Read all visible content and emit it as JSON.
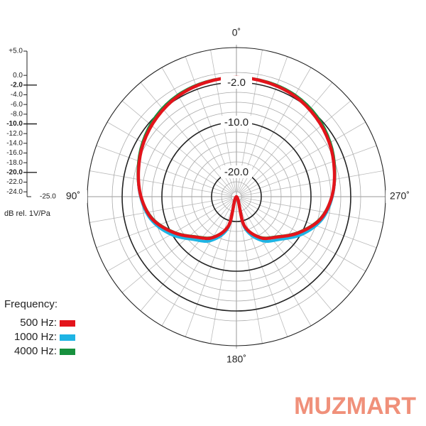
{
  "chart_data": {
    "type": "polar",
    "axis_label": "dB rel. 1V/Pa",
    "legend_title": "Frequency:",
    "watermark": "MUZMART",
    "rlim": [
      -25,
      5
    ],
    "rticks": [
      5,
      0,
      -2,
      -4,
      -6,
      -8,
      -10,
      -12,
      -14,
      -16,
      -18,
      -20,
      -22,
      -24
    ],
    "bold_rings": [
      {
        "value": -2,
        "label": "-2.0"
      },
      {
        "value": -10,
        "label": "-10.0"
      },
      {
        "value": -20,
        "label": "-20.0"
      }
    ],
    "spokes_every": 10,
    "angle_labels": [
      {
        "value": 0,
        "label": "0˚"
      },
      {
        "value": 90,
        "label": "90˚"
      },
      {
        "value": 180,
        "label": "180˚"
      },
      {
        "value": 270,
        "label": "270˚"
      }
    ],
    "yticks": [
      {
        "value": 5,
        "label": "+5.0"
      },
      {
        "value": 0,
        "label": "0.0"
      },
      {
        "value": -2,
        "label": "-2.0"
      },
      {
        "value": -4,
        "label": "-4.0"
      },
      {
        "value": -6,
        "label": "-6.0"
      },
      {
        "value": -8,
        "label": "-8.0"
      },
      {
        "value": -10,
        "label": "-10.0"
      },
      {
        "value": -12,
        "label": "-12.0"
      },
      {
        "value": -14,
        "label": "-14.0"
      },
      {
        "value": -16,
        "label": "-16.0"
      },
      {
        "value": -18,
        "label": "-18.0"
      },
      {
        "value": -20,
        "label": "-20.0"
      },
      {
        "value": -22,
        "label": "-22.0"
      },
      {
        "value": -24,
        "label": "-24.0"
      },
      {
        "value": -25,
        "label": "-25.0"
      }
    ],
    "angles": [
      0,
      15,
      30,
      45,
      60,
      75,
      90,
      105,
      120,
      135,
      150,
      165,
      180,
      195,
      210,
      225,
      240,
      255,
      270,
      285,
      300,
      315,
      330,
      345
    ],
    "series": [
      {
        "name": "500 Hz:",
        "color": "#e3141b",
        "values": [
          -1.0,
          -1.2,
          -1.6,
          -2.4,
          -3.4,
          -4.6,
          -5.8,
          -7.5,
          -10.5,
          -13.5,
          -15.5,
          -19,
          -25,
          -19,
          -15.5,
          -13.5,
          -10.5,
          -7.5,
          -5.8,
          -4.6,
          -3.4,
          -2.4,
          -1.6,
          -1.2
        ]
      },
      {
        "name": "1000 Hz:",
        "color": "#1eb4e4",
        "values": [
          -1.0,
          -1.2,
          -1.6,
          -2.4,
          -3.4,
          -4.6,
          -5.7,
          -7.2,
          -9.8,
          -12.8,
          -14.8,
          -18.5,
          -25,
          -18.5,
          -14.8,
          -12.8,
          -9.8,
          -7.2,
          -5.7,
          -4.6,
          -3.4,
          -2.4,
          -1.6,
          -1.2
        ]
      },
      {
        "name": "4000 Hz:",
        "color": "#17913e",
        "values": [
          -1.0,
          -1.1,
          -1.4,
          -2.1,
          -3.2,
          -4.5,
          -5.8,
          -7.6,
          -10.6,
          -13.6,
          -15.6,
          -19,
          -25,
          -19,
          -15.6,
          -13.6,
          -10.6,
          -7.6,
          -5.8,
          -4.5,
          -3.2,
          -2.1,
          -1.4,
          -1.1
        ]
      }
    ]
  }
}
